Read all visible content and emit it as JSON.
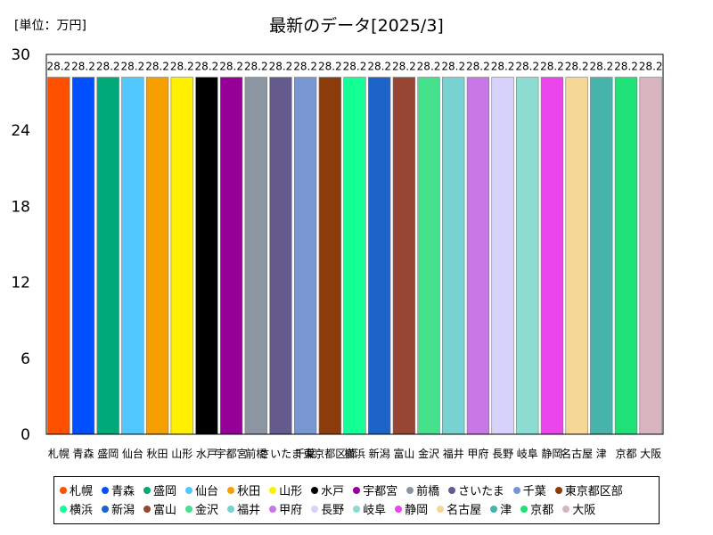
{
  "unit_label": "[単位：万円]",
  "chart_data": {
    "type": "bar",
    "title": "最新のデータ[2025/3]",
    "xlabel": "",
    "ylabel": "",
    "ylim": [
      0,
      30
    ],
    "yticks": [
      0,
      6,
      12,
      18,
      24,
      30
    ],
    "grid": false,
    "legend_position": "bottom",
    "categories": [
      "札幌",
      "青森",
      "盛岡",
      "仙台",
      "秋田",
      "山形",
      "水戸",
      "宇都宮",
      "前橋",
      "さいたま",
      "千葉",
      "東京都区部",
      "横浜",
      "新潟",
      "富山",
      "金沢",
      "福井",
      "甲府",
      "長野",
      "岐阜",
      "静岡",
      "名古屋",
      "津",
      "京都",
      "大阪"
    ],
    "values": [
      28.2,
      28.2,
      28.2,
      28.2,
      28.2,
      28.2,
      28.2,
      28.2,
      28.2,
      28.2,
      28.2,
      28.2,
      28.2,
      28.2,
      28.2,
      28.2,
      28.2,
      28.2,
      28.2,
      28.2,
      28.2,
      28.2,
      28.2,
      28.2,
      28.2
    ],
    "value_labels": [
      "28.2",
      "28.2",
      "28.2",
      "28.2",
      "28.2",
      "28.2",
      "28.2",
      "28.2",
      "28.2",
      "28.2",
      "28.2",
      "28.2",
      "28.2",
      "28.2",
      "28.2",
      "28.2",
      "28.2",
      "28.2",
      "28.2",
      "28.2",
      "28.2",
      "28.2",
      "28.2",
      "28.2",
      "28.2"
    ],
    "colors": [
      "#ff5000",
      "#0050ff",
      "#00aa78",
      "#50c8ff",
      "#f5a000",
      "#fff000",
      "#000000",
      "#960096",
      "#8c96a0",
      "#645a8c",
      "#7896d2",
      "#8c3c0a",
      "#14ff96",
      "#1e64c8",
      "#964632",
      "#46e18c",
      "#78d2d2",
      "#c878e6",
      "#d7d2fa",
      "#8cdcd2",
      "#eb46eb",
      "#f5d796",
      "#46b4aa",
      "#1ee178",
      "#d7b4be"
    ]
  }
}
